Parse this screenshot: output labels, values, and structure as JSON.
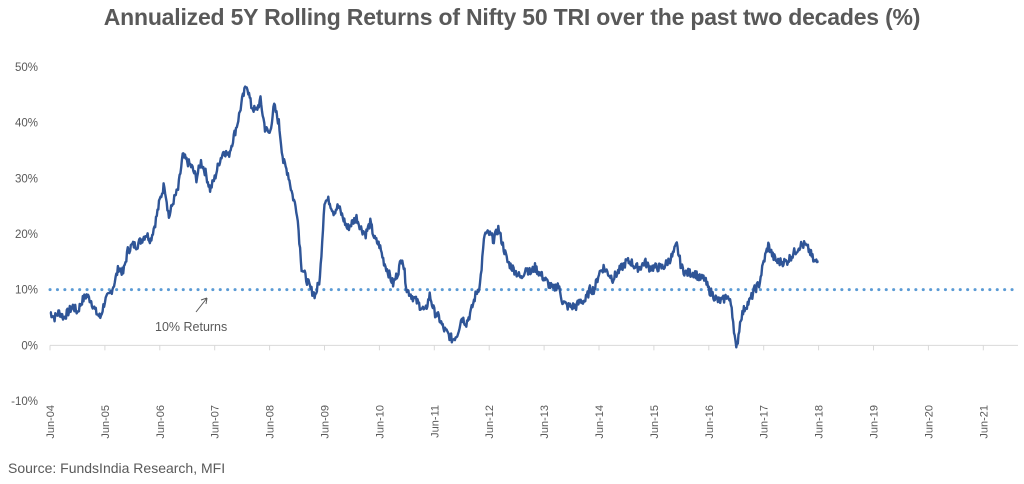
{
  "chart_data": {
    "type": "line",
    "title": "Annualized 5Y Rolling Returns of Nifty 50 TRI over the past two decades (%)",
    "xlabel": "",
    "ylabel": "",
    "ylim": [
      -10,
      50
    ],
    "yticks": [
      -10,
      0,
      10,
      20,
      30,
      40,
      50
    ],
    "ytick_labels": [
      "-10%",
      "0%",
      "10%",
      "20%",
      "30%",
      "40%",
      "50%"
    ],
    "xtick_labels": [
      "Jun-04",
      "Jun-05",
      "Jun-06",
      "Jun-07",
      "Jun-08",
      "Jun-09",
      "Jun-10",
      "Jun-11",
      "Jun-12",
      "Jun-13",
      "Jun-14",
      "Jun-15",
      "Jun-16",
      "Jun-17",
      "Jun-18",
      "Jun-19",
      "Jun-20",
      "Jun-21"
    ],
    "grid": false,
    "reference_line": {
      "value": 10,
      "style": "dotted",
      "label": "10% Returns",
      "color": "#5B9BD5"
    },
    "series": [
      {
        "name": "Nifty 50 TRI 5Y Rolling Return",
        "color": "#2F5597",
        "x_start": "Jun-04",
        "frequency": "monthly",
        "values": [
          6,
          5,
          6,
          5,
          6,
          7,
          6,
          8,
          9,
          8,
          6,
          5,
          8,
          9,
          11,
          14,
          13,
          17,
          18,
          18,
          19,
          20,
          19,
          22,
          26,
          29,
          23,
          26,
          28,
          34,
          33,
          32,
          30,
          33,
          31,
          28,
          30,
          33,
          35,
          34,
          37,
          40,
          44,
          47,
          43,
          42,
          44,
          39,
          38,
          43,
          40,
          33,
          31,
          27,
          24,
          14,
          12,
          10,
          9,
          12,
          26,
          26,
          24,
          25,
          23,
          21,
          22,
          23,
          21,
          20,
          22,
          19,
          18,
          15,
          13,
          11,
          13,
          16,
          10,
          9,
          8,
          7,
          6,
          9,
          6,
          5,
          3,
          2,
          1,
          2,
          5,
          4,
          6,
          9,
          11,
          20,
          20,
          19,
          21,
          18,
          15,
          14,
          13,
          12,
          14,
          13,
          14,
          13,
          12,
          11,
          10,
          11,
          8,
          7,
          7,
          7,
          8,
          8,
          10,
          10,
          13,
          14,
          13,
          12,
          13,
          14,
          15,
          15,
          14,
          14,
          15,
          14,
          14,
          14,
          14,
          15,
          16,
          18,
          14,
          13,
          13,
          13,
          12,
          12,
          10,
          9,
          8,
          8,
          9,
          7,
          -1,
          5,
          7,
          8,
          10,
          11,
          15,
          18,
          16,
          15,
          15,
          15,
          16,
          17,
          18,
          18,
          17,
          15,
          15
        ]
      }
    ],
    "source": "Source: FundsIndia Research, MFI"
  }
}
